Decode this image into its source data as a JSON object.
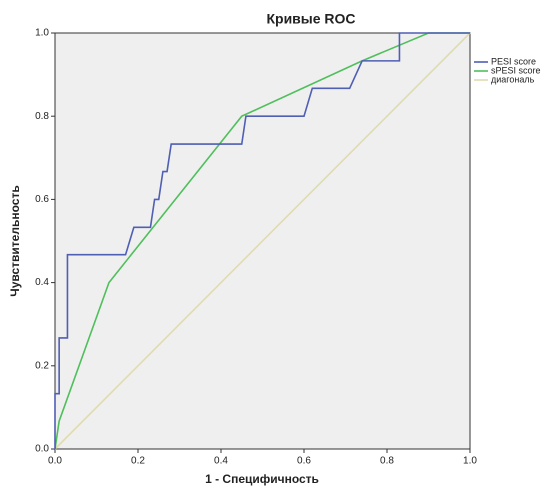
{
  "chart_data": {
    "type": "line",
    "title": "Кривые ROC",
    "x_label": "1 - Специфичность",
    "y_label": "Чувствительность",
    "xlim": [
      0,
      1
    ],
    "ylim": [
      0,
      1
    ],
    "xticks": [
      {
        "value": 0,
        "label": "0.0"
      },
      0.2,
      0.4,
      0.6,
      0.8,
      {
        "value": 1,
        "label": "1.0"
      }
    ],
    "yticks": [
      {
        "value": 0,
        "label": "0.0"
      },
      0.2,
      0.4,
      0.6,
      0.8,
      {
        "value": 1,
        "label": "1.0"
      }
    ],
    "series": [
      {
        "name": "PESI score",
        "color": "#4f5fb3",
        "x": [
          0,
          0,
          0.01,
          0.01,
          0.03,
          0.03,
          0.17,
          0.19,
          0.23,
          0.24,
          0.25,
          0.26,
          0.27,
          0.28,
          0.45,
          0.46,
          0.6,
          0.62,
          0.71,
          0.74,
          0.83,
          0.83,
          1
        ],
        "values": [
          0,
          0.133,
          0.133,
          0.267,
          0.267,
          0.467,
          0.467,
          0.533,
          0.533,
          0.6,
          0.6,
          0.667,
          0.667,
          0.733,
          0.733,
          0.8,
          0.8,
          0.867,
          0.867,
          0.933,
          0.933,
          1,
          1
        ]
      },
      {
        "name": "sPESI score",
        "color": "#4fbf5c",
        "x": [
          0,
          0.01,
          0.13,
          0.45,
          0.74,
          0.9,
          1
        ],
        "values": [
          0,
          0.067,
          0.4,
          0.8,
          0.933,
          1,
          1
        ]
      },
      {
        "name": "диагональ",
        "color": "#e0dbb0",
        "x": [
          0,
          1
        ],
        "values": [
          0,
          1
        ]
      }
    ]
  }
}
